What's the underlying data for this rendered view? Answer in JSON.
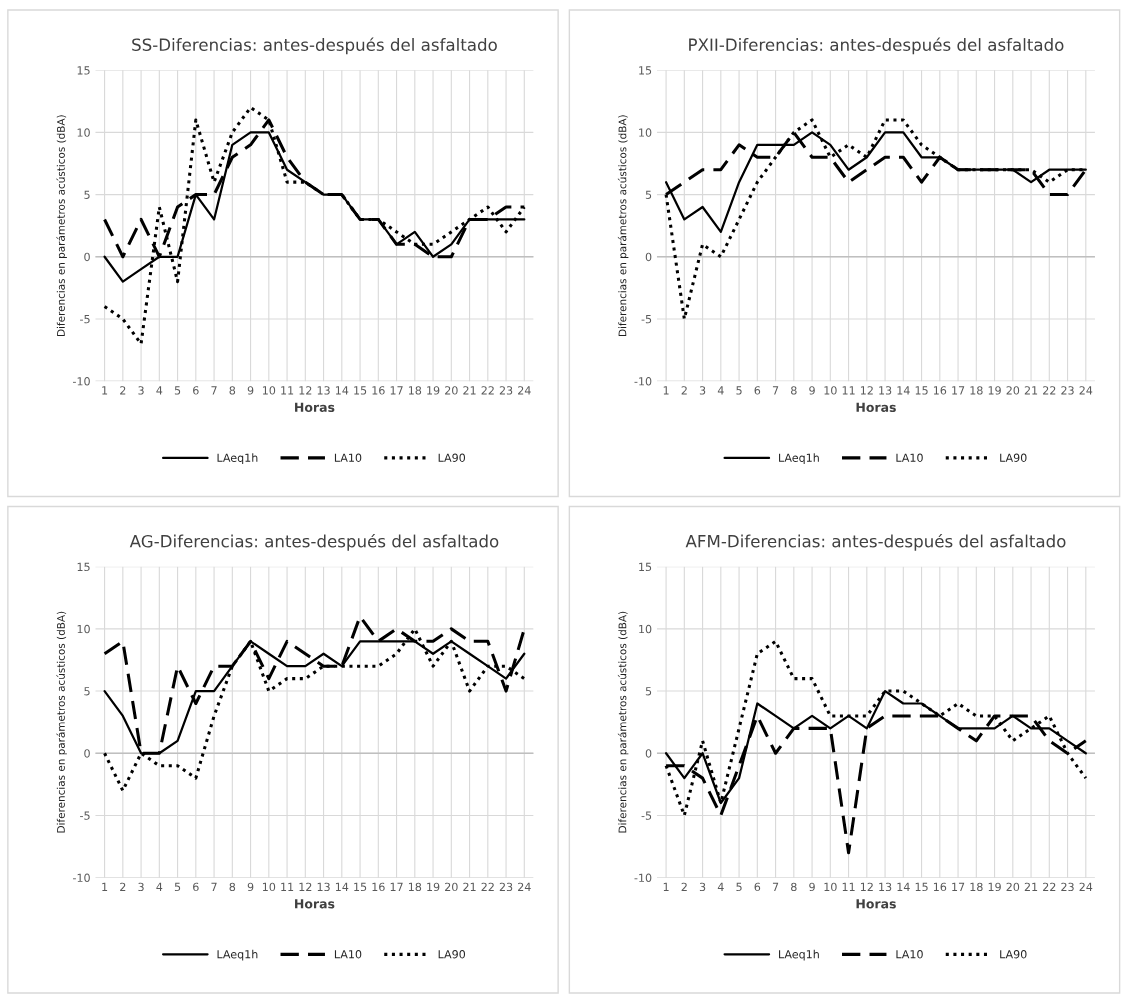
{
  "chart_data": [
    {
      "type": "line",
      "title": "SS-Diferencias: antes-después del asfaltado",
      "xlabel": "Horas",
      "ylabel": "Diferencias en parámetros acústicos (dBA)",
      "categories": [
        "1",
        "2",
        "3",
        "4",
        "5",
        "6",
        "7",
        "8",
        "9",
        "10",
        "11",
        "12",
        "13",
        "14",
        "15",
        "16",
        "17",
        "18",
        "19",
        "20",
        "21",
        "22",
        "23",
        "24"
      ],
      "ylim": [
        -10,
        15
      ],
      "yticks": [
        -10,
        -5,
        0,
        5,
        10,
        15
      ],
      "grid": true,
      "legend": "bottom",
      "marker": "none",
      "series": [
        {
          "name": "LAeq1h",
          "color": "#000000",
          "line_style": "solid",
          "values": [
            0,
            -2,
            -1,
            0,
            0,
            5,
            3,
            9,
            10,
            10,
            7,
            6,
            5,
            5,
            3,
            3,
            1,
            2,
            0,
            1,
            3,
            3,
            3,
            3
          ]
        },
        {
          "name": "LA10",
          "color": "#000000",
          "line_style": "dashed",
          "values": [
            3,
            0,
            3,
            0,
            4,
            5,
            5,
            8,
            9,
            11,
            8,
            6,
            5,
            5,
            3,
            3,
            1,
            1,
            0,
            0,
            3,
            3,
            4,
            4
          ]
        },
        {
          "name": "LA90",
          "color": "#000000",
          "line_style": "dotted",
          "values": [
            -4,
            -5,
            -7,
            4,
            -2,
            11,
            6,
            10,
            12,
            11,
            6,
            6,
            5,
            5,
            3,
            3,
            2,
            1,
            1,
            2,
            3,
            4,
            2,
            4
          ]
        }
      ]
    },
    {
      "type": "line",
      "title": "PXII-Diferencias: antes-después del asfaltado",
      "xlabel": "Horas",
      "ylabel": "Diferencias en parámetros acústicos (dBA)",
      "categories": [
        "1",
        "2",
        "3",
        "4",
        "5",
        "6",
        "7",
        "8",
        "9",
        "10",
        "11",
        "12",
        "13",
        "14",
        "15",
        "16",
        "17",
        "18",
        "19",
        "20",
        "21",
        "22",
        "23",
        "24"
      ],
      "ylim": [
        -10,
        15
      ],
      "yticks": [
        -10,
        -5,
        0,
        5,
        10,
        15
      ],
      "grid": true,
      "legend": "bottom",
      "marker": "none",
      "series": [
        {
          "name": "LAeq1h",
          "color": "#000000",
          "line_style": "solid",
          "values": [
            6,
            3,
            4,
            2,
            6,
            9,
            9,
            9,
            10,
            9,
            7,
            8,
            10,
            10,
            8,
            8,
            7,
            7,
            7,
            7,
            6,
            7,
            7,
            7
          ]
        },
        {
          "name": "LA10",
          "color": "#000000",
          "line_style": "dashed",
          "values": [
            5,
            6,
            7,
            7,
            9,
            8,
            8,
            10,
            8,
            8,
            6,
            7,
            8,
            8,
            6,
            8,
            7,
            7,
            7,
            7,
            7,
            5,
            5,
            7
          ]
        },
        {
          "name": "LA90",
          "color": "#000000",
          "line_style": "dotted",
          "values": [
            5,
            -5,
            1,
            0,
            3,
            6,
            8,
            10,
            11,
            8,
            9,
            8,
            11,
            11,
            9,
            8,
            7,
            7,
            7,
            7,
            7,
            6,
            7,
            7
          ]
        }
      ]
    },
    {
      "type": "line",
      "title": "AG-Diferencias: antes-después del asfaltado",
      "xlabel": "Horas",
      "ylabel": "Diferencias en parámetros acústicos (dBA)",
      "categories": [
        "1",
        "2",
        "3",
        "4",
        "5",
        "6",
        "7",
        "8",
        "9",
        "10",
        "11",
        "12",
        "13",
        "14",
        "15",
        "16",
        "17",
        "18",
        "19",
        "20",
        "21",
        "22",
        "23",
        "24"
      ],
      "ylim": [
        -10,
        15
      ],
      "yticks": [
        -10,
        -5,
        0,
        5,
        10,
        15
      ],
      "grid": true,
      "legend": "bottom",
      "marker": "none",
      "series": [
        {
          "name": "LAeq1h",
          "color": "#000000",
          "line_style": "solid",
          "values": [
            5,
            3,
            0,
            0,
            1,
            5,
            5,
            7,
            9,
            8,
            7,
            7,
            8,
            7,
            9,
            9,
            9,
            9,
            8,
            9,
            8,
            7,
            6,
            8
          ]
        },
        {
          "name": "LA10",
          "color": "#000000",
          "line_style": "dashed",
          "values": [
            8,
            9,
            0,
            0,
            7,
            4,
            7,
            7,
            9,
            6,
            9,
            8,
            7,
            7,
            11,
            9,
            10,
            9,
            9,
            10,
            9,
            9,
            5,
            10
          ]
        },
        {
          "name": "LA90",
          "color": "#000000",
          "line_style": "dotted",
          "values": [
            0,
            -3,
            0,
            -1,
            -1,
            -2,
            3,
            7,
            9,
            5,
            6,
            6,
            7,
            7,
            7,
            7,
            8,
            10,
            7,
            9,
            5,
            7,
            7,
            6
          ]
        }
      ]
    },
    {
      "type": "line",
      "title": "AFM-Diferencias: antes-después del asfaltado",
      "xlabel": "Horas",
      "ylabel": "Diferencias en parámetros acústicos (dBA)",
      "categories": [
        "1",
        "2",
        "3",
        "4",
        "5",
        "6",
        "7",
        "8",
        "9",
        "10",
        "11",
        "12",
        "13",
        "14",
        "15",
        "16",
        "17",
        "18",
        "19",
        "20",
        "21",
        "22",
        "23",
        "24"
      ],
      "ylim": [
        -10,
        15
      ],
      "yticks": [
        -10,
        -5,
        0,
        5,
        10,
        15
      ],
      "grid": true,
      "legend": "bottom",
      "marker": "none",
      "series": [
        {
          "name": "LAeq1h",
          "color": "#000000",
          "line_style": "solid",
          "values": [
            0,
            -2,
            0,
            -4,
            -2,
            4,
            3,
            2,
            3,
            2,
            3,
            2,
            5,
            4,
            4,
            3,
            2,
            2,
            2,
            3,
            2,
            2,
            1,
            0
          ]
        },
        {
          "name": "LA10",
          "color": "#000000",
          "line_style": "dashed",
          "values": [
            -1,
            -1,
            -2,
            -5,
            -1,
            3,
            0,
            2,
            2,
            2,
            -8,
            2,
            3,
            3,
            3,
            3,
            2,
            1,
            3,
            3,
            3,
            1,
            0,
            1
          ]
        },
        {
          "name": "LA90",
          "color": "#000000",
          "line_style": "dotted",
          "values": [
            -1,
            -5,
            1,
            -4,
            2,
            8,
            9,
            6,
            6,
            3,
            3,
            3,
            5,
            5,
            4,
            3,
            4,
            3,
            3,
            1,
            2,
            3,
            0,
            -2
          ]
        }
      ]
    }
  ]
}
